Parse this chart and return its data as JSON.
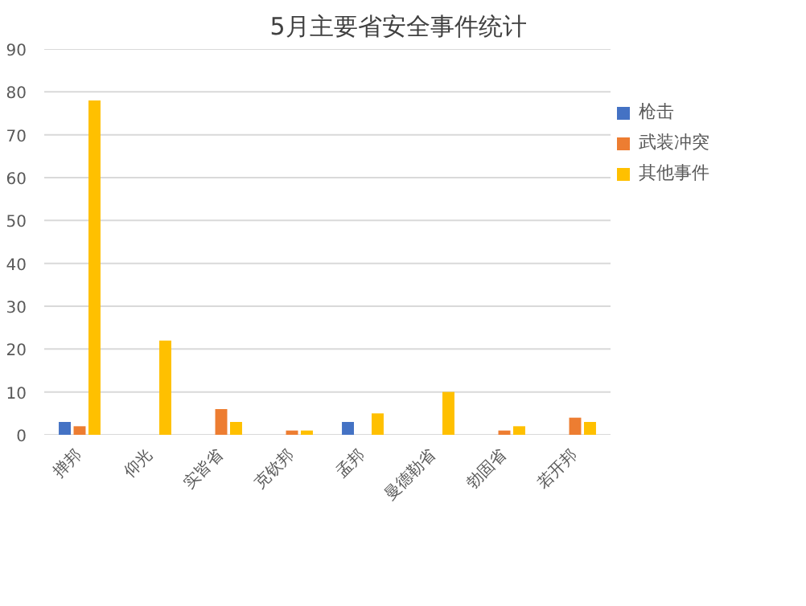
{
  "chart_data": {
    "type": "bar",
    "title": "5月主要省安全事件统计",
    "categories": [
      "掸邦",
      "仰光",
      "实皆省",
      "克钦邦",
      "孟邦",
      "曼德勒省",
      "勃固省",
      "若开邦"
    ],
    "series": [
      {
        "name": "枪击",
        "color": "#4472c4",
        "values": [
          3,
          0,
          0,
          0,
          3,
          0,
          0,
          0
        ]
      },
      {
        "name": "武装冲突",
        "color": "#ed7d31",
        "values": [
          2,
          0,
          6,
          1,
          0,
          0,
          1,
          4
        ]
      },
      {
        "name": "其他事件",
        "color": "#ffc000",
        "values": [
          78,
          22,
          3,
          1,
          5,
          10,
          2,
          3
        ]
      }
    ],
    "ylim": [
      0,
      90
    ],
    "yticks": [
      0,
      10,
      20,
      30,
      40,
      50,
      60,
      70,
      80,
      90
    ],
    "grid": "y",
    "legend": "right"
  }
}
